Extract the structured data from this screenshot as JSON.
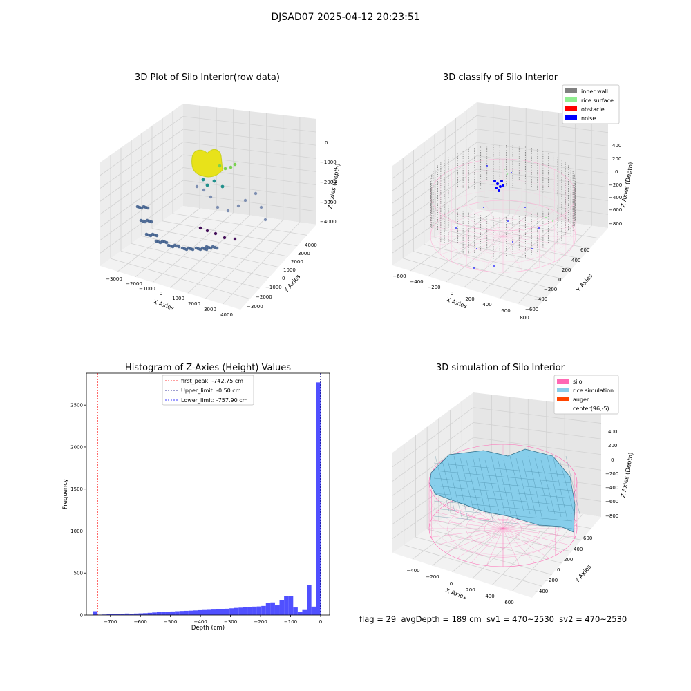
{
  "figure": {
    "suptitle": "DJSAD07 2025-04-12 20:23:51",
    "status": {
      "flag": "flag = 29",
      "avg_depth": "avgDepth = 189 cm",
      "sv1": "sv1 = 470~2530",
      "sv2": "sv2 = 470~2530"
    }
  },
  "colors": {
    "inner_wall": "#808080",
    "rice_surface": "#90ee90",
    "obstacle": "#ff0000",
    "noise": "#0000ff",
    "silo": "#ff69b4",
    "rice_simulation": "#87ceeb",
    "auger": "#ff4500",
    "hist_bar": "#5050ff",
    "first_peak_line": "#ff0000",
    "limit_line": "#000080"
  },
  "chart_data": [
    {
      "type": "scatter",
      "projection": "3d",
      "title": "3D Plot of Silo Interior(row data)",
      "xlabel": "X Axies",
      "ylabel": "Y Axies",
      "zlabel": "Z Axies (Depth)",
      "x_ticks": [
        "−3000",
        "−2000",
        "−1000",
        "0",
        "1000",
        "2000",
        "3000",
        "4000"
      ],
      "y_ticks": [
        "−3000",
        "−2000",
        "−1000",
        "0",
        "1000",
        "2000",
        "3000",
        "4000"
      ],
      "z_ticks": [
        "0",
        "−1000",
        "−2000",
        "−3000",
        "−4000"
      ],
      "colormap": "viridis",
      "grid": true
    },
    {
      "type": "scatter",
      "projection": "3d",
      "title": "3D classify of Silo Interior",
      "xlabel": "X Axies",
      "ylabel": "Y Axies",
      "zlabel": "Z Axies (Depth)",
      "x_ticks": [
        "−600",
        "−400",
        "−200",
        "0",
        "200",
        "400",
        "600",
        "800"
      ],
      "y_ticks": [
        "600",
        "400",
        "200",
        "0",
        "−200",
        "−400",
        "−600"
      ],
      "z_ticks": [
        "400",
        "200",
        "0",
        "−200",
        "−400",
        "−600",
        "−800"
      ],
      "legend": [
        "inner wall",
        "rice surface",
        "obstacle",
        "noise"
      ],
      "legend_position": "top-right",
      "grid": true
    },
    {
      "type": "bar",
      "title": "Histogram of Z-Axies (Height) Values",
      "xlabel": "Depth (cm)",
      "ylabel": "Frequency",
      "xlim": [
        -780,
        30
      ],
      "ylim": [
        0,
        2880
      ],
      "x_ticks": [
        -700,
        -600,
        -500,
        -400,
        -300,
        -200,
        -100,
        0
      ],
      "x_tick_labels": [
        "−700",
        "−600",
        "−500",
        "−400",
        "−300",
        "−200",
        "−100",
        "0"
      ],
      "y_ticks": [
        0,
        500,
        1000,
        1500,
        2000,
        2500
      ],
      "y_tick_labels": [
        "0",
        "500",
        "1000",
        "1500",
        "2000",
        "2500"
      ],
      "bin_width": 15.15,
      "bin_start": -757.9,
      "values": [
        45,
        4,
        6,
        8,
        10,
        12,
        16,
        18,
        16,
        18,
        20,
        22,
        26,
        30,
        38,
        34,
        40,
        42,
        45,
        48,
        50,
        52,
        55,
        58,
        60,
        62,
        65,
        68,
        72,
        75,
        80,
        85,
        88,
        92,
        96,
        100,
        102,
        108,
        140,
        150,
        115,
        180,
        230,
        225,
        90,
        40,
        60,
        360,
        100,
        2770
      ],
      "vlines": [
        {
          "name": "first_peak: -742.75 cm",
          "x": -742.75,
          "color": "#ff0000"
        },
        {
          "name": "Upper_limit: -0.50 cm",
          "x": -0.5,
          "color": "#000080"
        },
        {
          "name": "Lower_limit: -757.90 cm",
          "x": -757.9,
          "color": "#0000ff"
        }
      ],
      "legend_position": "top-center"
    },
    {
      "type": "surface",
      "projection": "3d",
      "title": "3D simulation of Silo Interior",
      "xlabel": "X Axies",
      "ylabel": "Y Axies",
      "zlabel": "Z Axies (Depth)",
      "x_ticks": [
        "−400",
        "−200",
        "0",
        "200",
        "400",
        "600"
      ],
      "y_ticks": [
        "600",
        "400",
        "200",
        "0",
        "−200",
        "−400"
      ],
      "z_ticks": [
        "400",
        "200",
        "0",
        "−200",
        "−400",
        "−600",
        "−800"
      ],
      "legend": [
        "silo",
        "rice simulation",
        "auger",
        "center(96,-5)"
      ],
      "legend_position": "top-right",
      "grid": true
    }
  ]
}
